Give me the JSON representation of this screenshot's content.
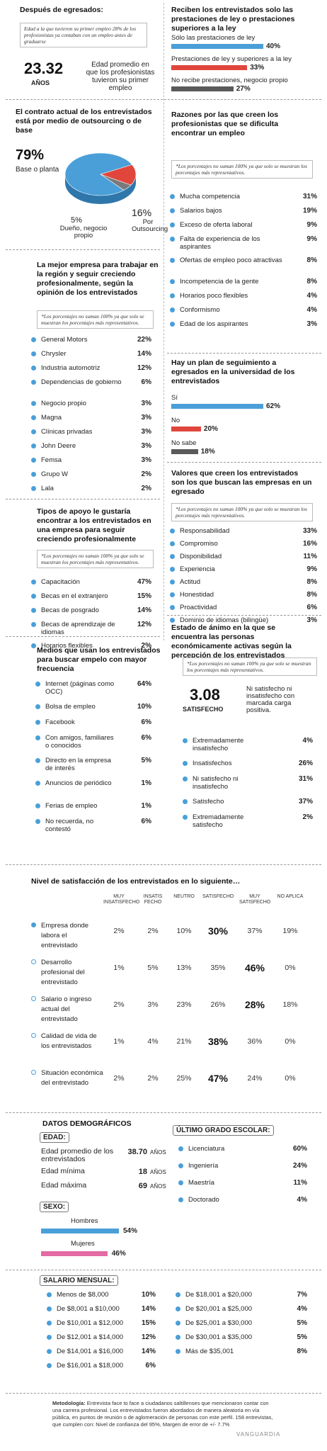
{
  "s1": {
    "title": "Después de egresados:",
    "note": "Edad a la que tuvieron su primer empleo 28% de los profesionistas ya contaban con un empleo antes de graduarse",
    "big": "23.32",
    "big_unit": "AÑOS",
    "desc": "Edad promedio en que los profesionistas tuvieron su primer empleo"
  },
  "s2": {
    "title": "Reciben los entrevistados solo las prestaciones de ley o prestaciones superiores a la ley",
    "items": [
      {
        "label": "Sólo las prestaciones de ley",
        "value": "40%",
        "v": 40
      },
      {
        "label": "Prestaciones de ley y superiores a la ley",
        "value": "33%",
        "v": 33
      },
      {
        "label": "No recibe prestaciones, negocio propio",
        "value": "27%",
        "v": 27
      }
    ]
  },
  "s3": {
    "title": "El contrato actual de los entrevistados está por medio de outsourcing o de base",
    "base_pct": "79%",
    "base_label": "Base o planta",
    "out_pct": "16%",
    "out_label": "Por Outsourcing",
    "own_pct": "5%",
    "own_label": "Dueño, negocio propio"
  },
  "s4": {
    "title": "Razones por las que creen los profesionistas que se dificulta encontrar un empleo",
    "note": "*Los porcentajes no suman 100% ya que solo se muestran los porcentajes más representativos.",
    "items": [
      {
        "label": "Mucha competencia",
        "value": "31%"
      },
      {
        "label": "Salarios bajos",
        "value": "19%"
      },
      {
        "label": "Exceso de oferta laboral",
        "value": "9%"
      },
      {
        "label": "Falta de experiencia de los aspirantes",
        "value": "9%"
      },
      {
        "label": "Ofertas de empleo poco atractivas",
        "value": "8%"
      },
      {
        "label": "Incompetencia de la gente",
        "value": "8%"
      },
      {
        "label": "Horarios poco flexibles",
        "value": "4%"
      },
      {
        "label": "Conformismo",
        "value": "4%"
      },
      {
        "label": "Edad de los aspirantes",
        "value": "3%"
      }
    ]
  },
  "s5": {
    "title": "La mejor empresa para trabajar en la región y seguir creciendo profesionalmente, según la opinión de los entrevistados",
    "note": "*Los porcentajes no suman 100% ya que solo se muestran los porcentajes más representativos.",
    "items": [
      {
        "label": "General Motors",
        "value": "22%"
      },
      {
        "label": "Chrysler",
        "value": "14%"
      },
      {
        "label": "Industria automotriz",
        "value": "12%"
      },
      {
        "label": "Dependencias de gobierno",
        "value": "6%"
      },
      {
        "label": "Negocio propio",
        "value": "3%"
      },
      {
        "label": "Magna",
        "value": "3%"
      },
      {
        "label": "Clínicas privadas",
        "value": "3%"
      },
      {
        "label": "John Deere",
        "value": "3%"
      },
      {
        "label": "Femsa",
        "value": "3%"
      },
      {
        "label": "Grupo W",
        "value": "2%"
      },
      {
        "label": "Lala",
        "value": "2%"
      }
    ]
  },
  "s6": {
    "title": "Hay un plan de seguimiento a egresados en la universidad de los entrevistados",
    "items": [
      {
        "label": "Sí",
        "value": "62%",
        "v": 62
      },
      {
        "label": "No",
        "value": "20%",
        "v": 20
      },
      {
        "label": "No sabe",
        "value": "18%",
        "v": 18
      }
    ]
  },
  "s7": {
    "title": "Tipos de apoyo le gustaría encontrar a los entrevistados en una empresa para seguir creciendo profesionalmente",
    "note": "*Los porcentajes no suman 100% ya que solo se muestran los porcentajes más representativos.",
    "items": [
      {
        "label": "Capacitación",
        "value": "47%"
      },
      {
        "label": "Becas en el extranjero",
        "value": "15%"
      },
      {
        "label": "Becas de posgrado",
        "value": "14%"
      },
      {
        "label": "Becas de aprendizaje de idiomas",
        "value": "12%"
      },
      {
        "label": "Horarios flexibles",
        "value": "2%"
      }
    ]
  },
  "s8": {
    "title": "Valores que creen los entrevistados son los que buscan las empresas en un egresado",
    "note": "*Los porcentajes no suman 100% ya que solo se muestran los porcentajes más representativos.",
    "items": [
      {
        "label": "Responsabilidad",
        "value": "33%"
      },
      {
        "label": "Compromiso",
        "value": "16%"
      },
      {
        "label": "Disponibilidad",
        "value": "11%"
      },
      {
        "label": "Experiencia",
        "value": "9%"
      },
      {
        "label": "Actitud",
        "value": "8%"
      },
      {
        "label": "Honestidad",
        "value": "8%"
      },
      {
        "label": "Proactividad",
        "value": "6%"
      },
      {
        "label": "Dominio de idiomas (bilingüe)",
        "value": "3%"
      }
    ]
  },
  "s9": {
    "title": "Medios que usan los entrevistados para buscar empelo con mayor frecuencia",
    "items": [
      {
        "label": "Internet (páginas como OCC)",
        "value": "64%"
      },
      {
        "label": "Bolsa de empleo",
        "value": "10%"
      },
      {
        "label": "Facebook",
        "value": "6%"
      },
      {
        "label": "Con amigos, familiares o conocidos",
        "value": "6%"
      },
      {
        "label": "Directo en la empresa de interés",
        "value": "5%"
      },
      {
        "label": "Anuncios de periódico",
        "value": "1%"
      },
      {
        "label": "Ferias de empleo",
        "value": "1%"
      },
      {
        "label": "No recuerda, no contestó",
        "value": "6%"
      }
    ]
  },
  "s10": {
    "title": "Estado de ánimo en la que se encuentra las personas económicamente activas según la percepción de los entrevistados",
    "note": "*Los porcentajes no suman 100% ya que solo se muestran los porcentajes más representativos.",
    "big": "3.08",
    "big_label": "SATISFECHO",
    "desc": "Ni satisfecho ni insatisfecho con marcada carga positiva.",
    "items": [
      {
        "label": "Extremadamente insatisfecho",
        "value": "4%"
      },
      {
        "label": "Insatisfechos",
        "value": "26%"
      },
      {
        "label": "Ni satisfecho ni insatisfecho",
        "value": "31%"
      },
      {
        "label": "Satisfecho",
        "value": "37%"
      },
      {
        "label": "Extremadamente satisfecho",
        "value": "2%"
      }
    ]
  },
  "s11": {
    "title": "Nivel de satisfacción de los entrevistados en lo siguiente…",
    "columns": [
      "MUY INSATISFECHO",
      "INSATIS FECHO",
      "NEUTRO",
      "SATISFECHO",
      "MUY SATISFECHO",
      "NO APLICA"
    ],
    "rows": [
      {
        "label": "Empresa donde labora el entrevistado",
        "values": [
          "2%",
          "2%",
          "10%",
          "30%",
          "37%",
          "19%"
        ],
        "bold": 3,
        "dark": true
      },
      {
        "label": "Desarrollo profesional del entrevistado",
        "values": [
          "1%",
          "5%",
          "13%",
          "35%",
          "46%",
          "0%"
        ],
        "bold": 4,
        "dark": false
      },
      {
        "label": "Salario o ingreso actual del entrevistado",
        "values": [
          "2%",
          "3%",
          "23%",
          "26%",
          "28%",
          "18%"
        ],
        "bold": 4,
        "dark": false
      },
      {
        "label": "Calidad de vida de los entrevistados",
        "values": [
          "1%",
          "4%",
          "21%",
          "38%",
          "36%",
          "0%"
        ],
        "bold": 3,
        "dark": false
      },
      {
        "label": "Situación económica del entrevistado",
        "values": [
          "2%",
          "2%",
          "25%",
          "47%",
          "24%",
          "0%"
        ],
        "bold": 3,
        "dark": false
      }
    ]
  },
  "demo": {
    "title": "DATOS DEMOGRÁFICOS",
    "edad_label": "EDAD:",
    "edad_rows": [
      {
        "label": "Edad promedio de los entrevistados",
        "value": "38.70",
        "unit": "AÑOS"
      },
      {
        "label": "Edad mínima",
        "value": "18",
        "unit": "AÑOS"
      },
      {
        "label": "Edad máxima",
        "value": "69",
        "unit": "AÑOS"
      }
    ],
    "sexo_label": "SEXO:",
    "sexo": [
      {
        "label": "Hombres",
        "value": "54%",
        "v": 54
      },
      {
        "label": "Mujeres",
        "value": "46%",
        "v": 46
      }
    ]
  },
  "edu": {
    "title": "ÚLTIMO GRADO ESCOLAR:",
    "items": [
      {
        "label": "Licenciatura",
        "value": "60%"
      },
      {
        "label": "Ingeniería",
        "value": "24%"
      },
      {
        "label": "Maestría",
        "value": "11%"
      },
      {
        "label": "Doctorado",
        "value": "4%"
      }
    ]
  },
  "salario": {
    "title": "SALARIO MENSUAL:",
    "left": [
      {
        "label": "Menos de $8,000",
        "value": "10%"
      },
      {
        "label": "De $8,001 a $10,000",
        "value": "14%"
      },
      {
        "label": "De $10,001 a $12,000",
        "value": "15%"
      },
      {
        "label": "De $12,001 a $14,000",
        "value": "12%"
      },
      {
        "label": "De $14,001 a $16,000",
        "value": "14%"
      },
      {
        "label": "De $16,001 a $18,000",
        "value": "6%"
      }
    ],
    "right": [
      {
        "label": "De $18,001 a $20,000",
        "value": "7%"
      },
      {
        "label": "De $20,001 a $25,000",
        "value": "4%"
      },
      {
        "label": "De $25,001 a $30,000",
        "value": "5%"
      },
      {
        "label": "De $30,001 a $35,000",
        "value": "5%"
      },
      {
        "label": "Más de $35,001",
        "value": "8%"
      }
    ]
  },
  "footer": {
    "method_label": "Metodología:",
    "method": "Entrevista face to face a ciudadanos saltillenses que mencionaron contar con una carrera profesional. Los entrevistados fueron abordados de manera aleatoria en vía pública, en puntos de reunión o de aglomeración de personas con este perfil. 158 entrevistas, que cumplen con: Nivel de confianza del 95%, Margen de error de +/- 7.7%",
    "credit": "VANGUARDIA"
  },
  "colors": {
    "blue": "#4a9fd8",
    "red": "#e0463c",
    "gray": "#5a5a5a",
    "pink": "#e36aa3"
  },
  "chart_data": [
    {
      "type": "pie",
      "title": "El contrato actual de los entrevistados está por medio de outsourcing o de base",
      "categories": [
        "Base o planta",
        "Por Outsourcing",
        "Dueño, negocio propio"
      ],
      "values": [
        79,
        16,
        5
      ]
    },
    {
      "type": "bar",
      "title": "Reciben los entrevistados solo las prestaciones de ley o prestaciones superiores a la ley",
      "categories": [
        "Sólo las prestaciones de ley",
        "Prestaciones de ley y superiores a la ley",
        "No recibe prestaciones, negocio propio"
      ],
      "values": [
        40,
        33,
        27
      ]
    },
    {
      "type": "bar",
      "title": "Hay un plan de seguimiento a egresados en la universidad de los entrevistados",
      "categories": [
        "Sí",
        "No",
        "No sabe"
      ],
      "values": [
        62,
        20,
        18
      ]
    },
    {
      "type": "bar",
      "title": "SEXO:",
      "categories": [
        "Hombres",
        "Mujeres"
      ],
      "values": [
        54,
        46
      ]
    }
  ]
}
